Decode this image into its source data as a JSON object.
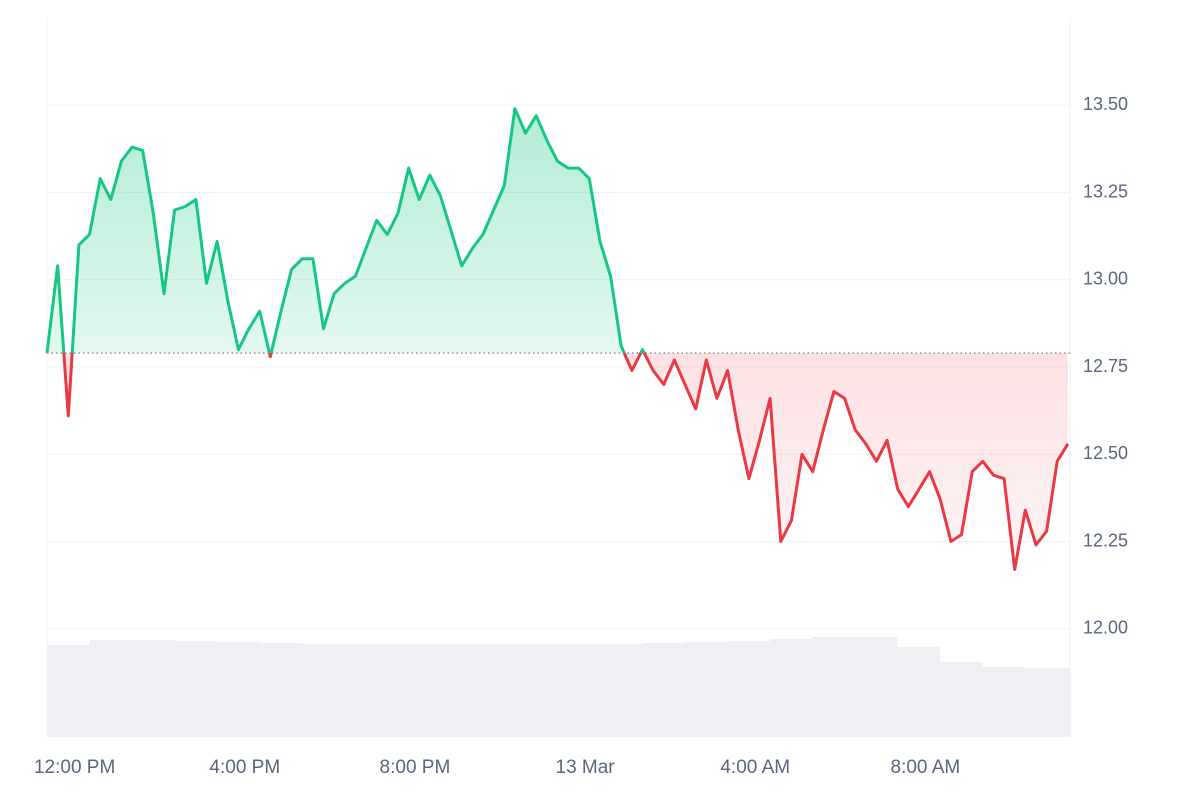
{
  "chart_data": {
    "type": "line",
    "x": [
      -0.65,
      -0.4,
      -0.15,
      0.1,
      0.35,
      0.6,
      0.85,
      1.1,
      1.35,
      1.6,
      1.85,
      2.1,
      2.35,
      2.6,
      2.85,
      3.1,
      3.35,
      3.6,
      3.85,
      4.1,
      4.35,
      4.6,
      4.85,
      5.1,
      5.35,
      5.6,
      5.85,
      6.1,
      6.35,
      6.6,
      6.85,
      7.1,
      7.35,
      7.6,
      7.85,
      8.1,
      8.35,
      8.6,
      8.85,
      9.1,
      9.35,
      9.6,
      9.85,
      10.1,
      10.35,
      10.6,
      10.85,
      11.1,
      11.35,
      11.6,
      11.85,
      12.1,
      12.35,
      12.6,
      12.85,
      13.1,
      13.35,
      13.6,
      13.85,
      14.1,
      14.35,
      14.6,
      14.85,
      15.1,
      15.35,
      15.6,
      15.85,
      16.1,
      16.35,
      16.6,
      16.85,
      17.1,
      17.35,
      17.6,
      17.85,
      18.1,
      18.35,
      18.6,
      18.85,
      19.1,
      19.35,
      19.6,
      19.85,
      20.1,
      20.35,
      20.6,
      20.85,
      21.1,
      21.35,
      21.6,
      21.85,
      22.1,
      22.35,
      22.6,
      22.85,
      23.1,
      23.35
    ],
    "values": [
      12.79,
      13.04,
      12.61,
      13.1,
      13.13,
      13.29,
      13.23,
      13.34,
      13.38,
      13.37,
      13.19,
      12.96,
      13.2,
      13.21,
      13.23,
      12.99,
      13.11,
      12.94,
      12.8,
      12.86,
      12.91,
      12.78,
      12.91,
      13.03,
      13.06,
      13.06,
      12.86,
      12.96,
      12.99,
      13.01,
      13.09,
      13.17,
      13.13,
      13.19,
      13.32,
      13.23,
      13.3,
      13.24,
      13.14,
      13.04,
      13.09,
      13.13,
      13.2,
      13.27,
      13.49,
      13.42,
      13.47,
      13.4,
      13.34,
      13.32,
      13.32,
      13.29,
      13.11,
      13.01,
      12.81,
      12.74,
      12.8,
      12.74,
      12.7,
      12.77,
      12.7,
      12.63,
      12.77,
      12.66,
      12.74,
      12.57,
      12.43,
      12.54,
      12.66,
      12.25,
      12.31,
      12.5,
      12.45,
      12.57,
      12.68,
      12.66,
      12.57,
      12.53,
      12.48,
      12.54,
      12.4,
      12.35,
      12.4,
      12.45,
      12.37,
      12.25,
      12.27,
      12.45,
      12.48,
      12.44,
      12.43,
      12.17,
      12.34,
      12.24,
      12.28,
      12.48,
      12.53
    ],
    "baseline": 12.79,
    "up_color": "#16c784",
    "down_color": "#ea3943",
    "xlim": [
      -0.65,
      23.4
    ],
    "xticks": [
      {
        "value": 0,
        "label": "12:00 PM"
      },
      {
        "value": 4,
        "label": "4:00 PM"
      },
      {
        "value": 8,
        "label": "8:00 PM"
      },
      {
        "value": 12,
        "label": "13 Mar"
      },
      {
        "value": 16,
        "label": "4:00 AM"
      },
      {
        "value": 20,
        "label": "8:00 AM"
      }
    ],
    "ylim": [
      11.69,
      13.75
    ],
    "yticks": [
      {
        "value": 12,
        "label": "12.00"
      },
      {
        "value": 12.25,
        "label": "12.25"
      },
      {
        "value": 12.5,
        "label": "12.50"
      },
      {
        "value": 12.75,
        "label": "12.75"
      },
      {
        "value": 13,
        "label": "13.00"
      },
      {
        "value": 13.25,
        "label": "13.25"
      },
      {
        "value": 13.5,
        "label": "13.50"
      }
    ],
    "grid": true,
    "volume": {
      "color": "#eef0f3",
      "x": [
        -0.65,
        0.35,
        1.35,
        2.35,
        3.35,
        4.35,
        5.35,
        6.35,
        7.35,
        8.35,
        9.35,
        10.35,
        11.35,
        12.35,
        13.35,
        14.35,
        15.35,
        16.35,
        17.35,
        18.35,
        19.35,
        20.35,
        21.35,
        22.35,
        23.35
      ],
      "values": [
        92,
        97,
        97,
        96,
        95,
        94,
        93,
        93,
        93,
        93,
        93,
        93,
        93,
        93,
        94,
        95,
        96,
        98,
        100,
        100,
        90,
        75,
        70,
        69,
        69
      ],
      "vlim": [
        0,
        100
      ]
    }
  }
}
